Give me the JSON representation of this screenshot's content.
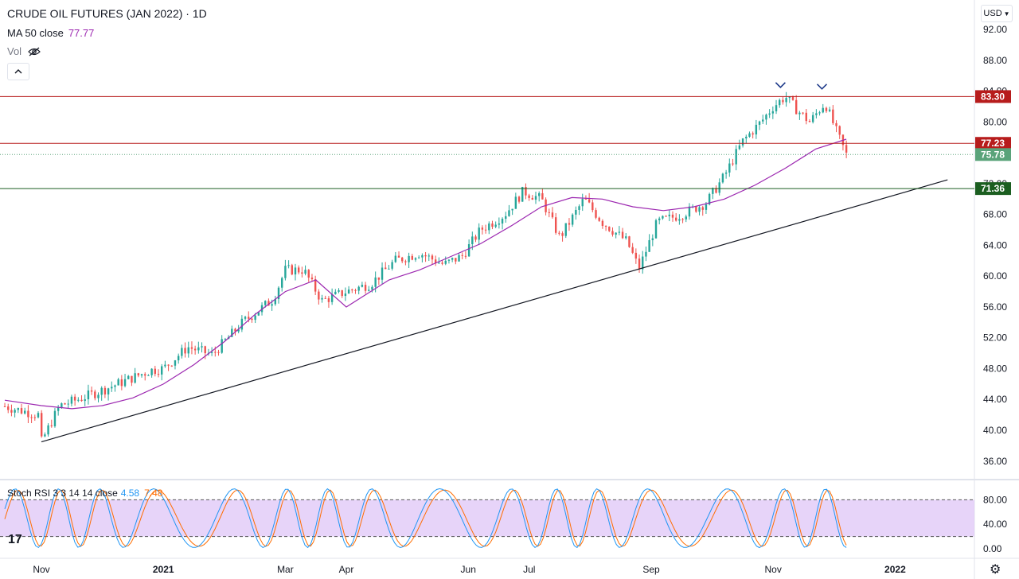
{
  "header": {
    "title": "CRUDE OIL FUTURES (JAN 2022) · 1D",
    "ma_label": "MA 50 close",
    "ma_value": "77.77",
    "vol_label": "Vol",
    "currency": "USD"
  },
  "stoch_legend": {
    "label": "Stoch RSI 3 3 14 14 close",
    "k": "4.58",
    "d": "7.48"
  },
  "colors": {
    "up": "#26a69a",
    "down": "#ef5350",
    "ma": "#9c27b0",
    "resistance": "#b71c1c",
    "support": "#1b5e20",
    "last": "#5aa37a",
    "band": "#e1c9f7",
    "stoch_k": "#2196f3",
    "stoch_d": "#ff6d00"
  },
  "chart_data": {
    "type": "candlestick",
    "ylim": [
      34.0,
      96.0
    ],
    "y_ticks": [
      "36.00",
      "40.00",
      "44.00",
      "48.00",
      "52.00",
      "56.00",
      "60.00",
      "64.00",
      "68.00",
      "72.00",
      "76.00",
      "80.00",
      "84.00",
      "88.00",
      "92.00"
    ],
    "x_ticks": [
      {
        "label": "Nov",
        "t": 0.0
      },
      {
        "label": "2021",
        "t": 2.0
      },
      {
        "label": "Mar",
        "t": 4.0
      },
      {
        "label": "Apr",
        "t": 5.0
      },
      {
        "label": "Jun",
        "t": 7.0
      },
      {
        "label": "Jul",
        "t": 8.0
      },
      {
        "label": "Sep",
        "t": 10.0
      },
      {
        "label": "Nov",
        "t": 12.0
      },
      {
        "label": "2022",
        "t": 14.0
      }
    ],
    "price_path": [
      [
        -0.6,
        43.1
      ],
      [
        -0.05,
        42.0
      ],
      [
        0.0,
        38.5
      ],
      [
        0.3,
        43.2
      ],
      [
        0.6,
        44.0
      ],
      [
        1.0,
        45.2
      ],
      [
        1.4,
        46.5
      ],
      [
        1.8,
        47.8
      ],
      [
        2.0,
        48.0
      ],
      [
        2.4,
        50.8
      ],
      [
        2.8,
        49.8
      ],
      [
        3.3,
        54.0
      ],
      [
        3.8,
        57.0
      ],
      [
        4.0,
        60.8
      ],
      [
        4.3,
        60.8
      ],
      [
        4.6,
        56.8
      ],
      [
        5.0,
        58.0
      ],
      [
        5.4,
        59.0
      ],
      [
        5.8,
        62.0
      ],
      [
        6.2,
        63.0
      ],
      [
        6.6,
        61.5
      ],
      [
        6.9,
        62.6
      ],
      [
        7.2,
        66.0
      ],
      [
        7.6,
        68.0
      ],
      [
        7.9,
        71.0
      ],
      [
        8.2,
        70.0
      ],
      [
        8.5,
        65.0
      ],
      [
        8.9,
        70.0
      ],
      [
        9.2,
        67.0
      ],
      [
        9.6,
        64.5
      ],
      [
        9.8,
        61.0
      ],
      [
        10.1,
        67.0
      ],
      [
        10.5,
        68.0
      ],
      [
        10.9,
        69.5
      ],
      [
        11.2,
        73.0
      ],
      [
        11.5,
        77.5
      ],
      [
        11.8,
        80.0
      ],
      [
        12.0,
        82.0
      ],
      [
        12.2,
        83.3
      ],
      [
        12.4,
        81.5
      ],
      [
        12.6,
        80.0
      ],
      [
        12.85,
        82.5
      ],
      [
        13.05,
        78.5
      ],
      [
        13.2,
        75.78
      ]
    ],
    "ma50": {
      "label": "MA 50 close",
      "last": 77.77,
      "path": [
        [
          -0.6,
          43.9
        ],
        [
          0.0,
          43.2
        ],
        [
          0.5,
          42.8
        ],
        [
          1.0,
          43.2
        ],
        [
          1.5,
          44.2
        ],
        [
          2.0,
          46.0
        ],
        [
          2.5,
          48.5
        ],
        [
          3.0,
          51.5
        ],
        [
          3.5,
          55.0
        ],
        [
          4.0,
          58.0
        ],
        [
          4.5,
          59.5
        ],
        [
          5.0,
          56.0
        ],
        [
          5.3,
          57.5
        ],
        [
          5.7,
          59.5
        ],
        [
          6.2,
          60.8
        ],
        [
          6.7,
          62.5
        ],
        [
          7.2,
          64.2
        ],
        [
          7.7,
          66.5
        ],
        [
          8.2,
          69.0
        ],
        [
          8.7,
          70.2
        ],
        [
          9.2,
          70.0
        ],
        [
          9.7,
          69.0
        ],
        [
          10.2,
          68.5
        ],
        [
          10.7,
          69.0
        ],
        [
          11.2,
          70.0
        ],
        [
          11.7,
          71.8
        ],
        [
          12.2,
          74.0
        ],
        [
          12.7,
          76.5
        ],
        [
          13.2,
          77.77
        ]
      ]
    },
    "horizontal_levels": [
      {
        "value": 83.3,
        "label": "83.30",
        "role": "resistance"
      },
      {
        "value": 77.23,
        "label": "77.23",
        "role": "resistance"
      },
      {
        "value": 71.36,
        "label": "71.36",
        "role": "support"
      }
    ],
    "last_price": {
      "value": 75.78,
      "label": "75.78"
    },
    "trendline": [
      [
        0.0,
        38.5
      ],
      [
        14.86,
        72.5
      ]
    ],
    "markers": [
      {
        "t": 12.12,
        "y": 84.6
      },
      {
        "t": 12.8,
        "y": 84.4
      }
    ],
    "stoch_rsi": {
      "label": "Stoch RSI 3 3 14 14 close",
      "k_last": 4.58,
      "d_last": 7.48,
      "upper_band": 80,
      "lower_band": 20,
      "y_ticks": [
        "0.00",
        "40.00",
        "80.00"
      ]
    }
  }
}
